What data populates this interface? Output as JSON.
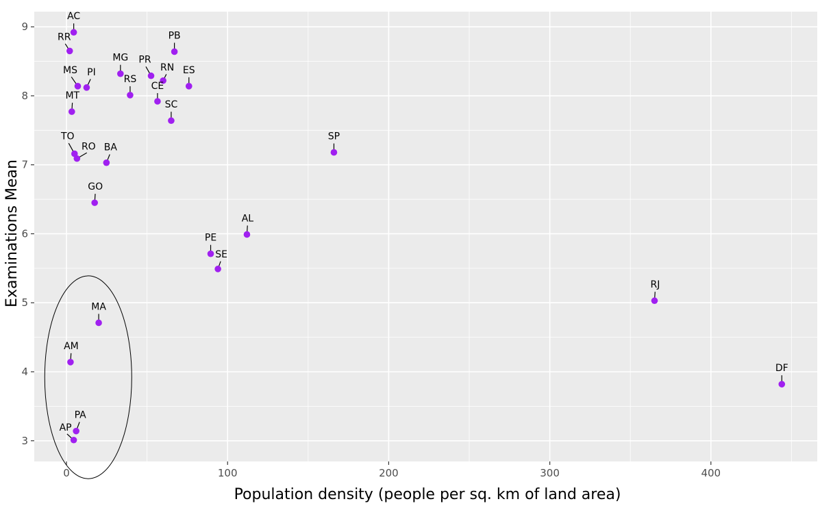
{
  "chart_data": {
    "type": "scatter",
    "title": "",
    "xlabel": "Population density (people per sq. km of land area)",
    "ylabel": "Examinations Mean",
    "xlim": [
      -20,
      466
    ],
    "ylim": [
      2.7,
      9.22
    ],
    "x_ticks": [
      0,
      100,
      200,
      300,
      400
    ],
    "y_ticks": [
      3,
      4,
      5,
      6,
      7,
      8,
      9
    ],
    "grid": true,
    "point_color": "#a020f0",
    "panel_color": "#ebebeb",
    "points": [
      {
        "label": "AC",
        "x": 4.5,
        "y": 8.92
      },
      {
        "label": "RR",
        "x": 2.0,
        "y": 8.65
      },
      {
        "label": "PB",
        "x": 67.0,
        "y": 8.64
      },
      {
        "label": "MG",
        "x": 33.5,
        "y": 8.32
      },
      {
        "label": "PR",
        "x": 52.5,
        "y": 8.29
      },
      {
        "label": "RN",
        "x": 60.0,
        "y": 8.22
      },
      {
        "label": "MS",
        "x": 7.0,
        "y": 8.14
      },
      {
        "label": "PI",
        "x": 12.5,
        "y": 8.12
      },
      {
        "label": "ES",
        "x": 76.0,
        "y": 8.14
      },
      {
        "label": "RS",
        "x": 39.5,
        "y": 8.01
      },
      {
        "label": "CE",
        "x": 56.5,
        "y": 7.92
      },
      {
        "label": "MT",
        "x": 3.3,
        "y": 7.77
      },
      {
        "label": "SC",
        "x": 65.0,
        "y": 7.64
      },
      {
        "label": "SP",
        "x": 166.0,
        "y": 7.18
      },
      {
        "label": "TO",
        "x": 5.0,
        "y": 7.16
      },
      {
        "label": "RO",
        "x": 6.5,
        "y": 7.09
      },
      {
        "label": "BA",
        "x": 24.8,
        "y": 7.03
      },
      {
        "label": "GO",
        "x": 17.5,
        "y": 6.45
      },
      {
        "label": "AL",
        "x": 112.0,
        "y": 5.99
      },
      {
        "label": "PE",
        "x": 89.5,
        "y": 5.71
      },
      {
        "label": "SE",
        "x": 94.0,
        "y": 5.49
      },
      {
        "label": "RJ",
        "x": 365.0,
        "y": 5.03
      },
      {
        "label": "MA",
        "x": 20.0,
        "y": 4.71
      },
      {
        "label": "AM",
        "x": 2.5,
        "y": 4.14
      },
      {
        "label": "DF",
        "x": 444.0,
        "y": 3.82
      },
      {
        "label": "PA",
        "x": 6.0,
        "y": 3.14
      },
      {
        "label": "AP",
        "x": 4.5,
        "y": 3.01
      }
    ],
    "highlight_ellipse": {
      "cx": 13.5,
      "cy": 3.92,
      "rx": 27.0,
      "ry": 1.47
    }
  }
}
